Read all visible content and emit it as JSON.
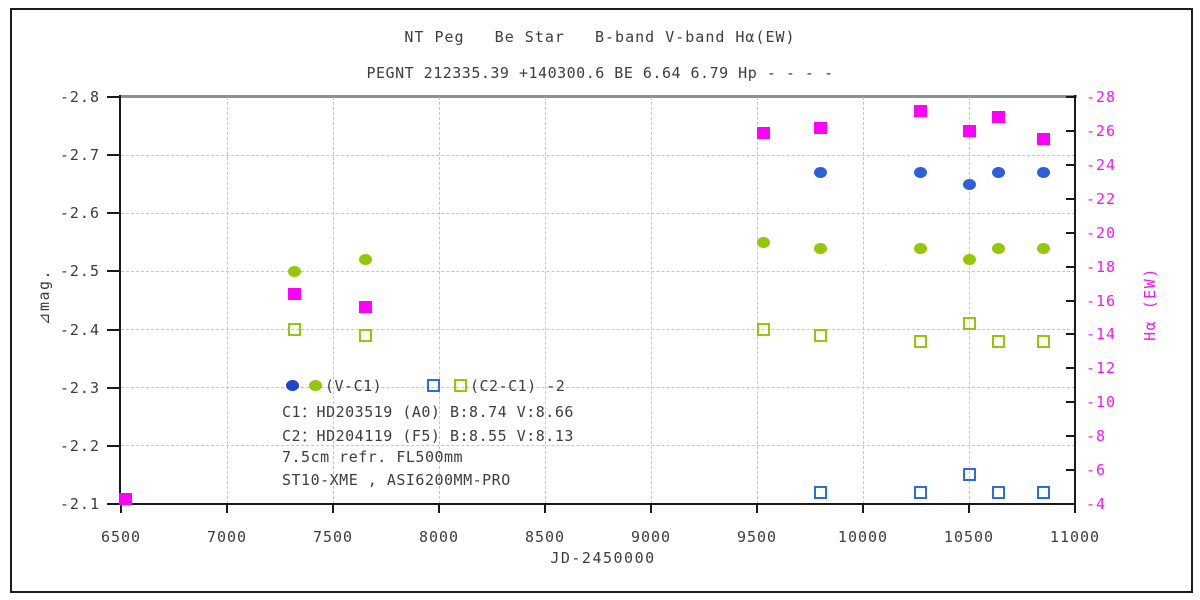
{
  "header": {
    "title": "NT Peg   Be Star   B-band V-band Hα(EW)",
    "subtitle": "PEGNT 212335.39 +140300.6 BE 6.64 6.79 Hp - - - -"
  },
  "legend": {
    "vc1_label": "(V-C1)",
    "c2c1_label": "(C2-C1) -2"
  },
  "annotations": {
    "line1": "C1：HD203519 (A0) B:8.74 V:8.66",
    "line2": "C2：HD204119 (F5) B:8.55 V:8.13",
    "line3": "7.5cm refr. FL500mm",
    "line4": "ST10-XME , ASI6200MM-PRO"
  },
  "colors": {
    "blue_circle": "#2e5fd8",
    "blue_square": "#2f6be0",
    "olive": "#94c60a",
    "magenta": "#ff00ff",
    "magenta_text": "#f318f3",
    "grid": "#c6c6c6",
    "axis": "#1a1a1a",
    "text": "#3d3d3d"
  },
  "chart_data": {
    "type": "scatter",
    "title": "NT Peg  Be Star  B-band V-band Hα(EW)",
    "subtitle": "PEGNT 212335.39 +140300.6 BE 6.64 6.79 Hp - - - -",
    "xlabel": "JD-2450000",
    "ylabel_left": "⊿mag.",
    "ylabel_right": "Hα (EW)",
    "xlim": [
      6500,
      11000
    ],
    "x_ticks": [
      6500,
      7000,
      7500,
      8000,
      8500,
      9000,
      9500,
      10000,
      10500,
      11000
    ],
    "ylim_left": [
      -2.8,
      -2.1
    ],
    "y_left_ticks": [
      -2.8,
      -2.7,
      -2.6,
      -2.5,
      -2.4,
      -2.3,
      -2.2,
      -2.1
    ],
    "ylim_right": [
      -28,
      -4
    ],
    "y_right_ticks": [
      -28,
      -26,
      -24,
      -22,
      -20,
      -18,
      -16,
      -14,
      -12,
      -10,
      -8,
      -6,
      -4
    ],
    "grid": "dashed interior gridlines, both axes",
    "legend_position": "inside lower-left",
    "series": [
      {
        "name": "B-C1 (blue filled circle)",
        "marker": "filled-circle",
        "color_key": "blue_circle",
        "axis": "left",
        "points": [
          [
            9800,
            -2.67
          ],
          [
            10270,
            -2.67
          ],
          [
            10500,
            -2.65
          ],
          [
            10640,
            -2.67
          ],
          [
            10850,
            -2.67
          ]
        ]
      },
      {
        "name": "V-C1 (olive filled circle)",
        "marker": "filled-circle",
        "color_key": "olive",
        "axis": "left",
        "points": [
          [
            7320,
            -2.5
          ],
          [
            7655,
            -2.52
          ],
          [
            9530,
            -2.55
          ],
          [
            9800,
            -2.54
          ],
          [
            10270,
            -2.54
          ],
          [
            10500,
            -2.52
          ],
          [
            10640,
            -2.54
          ],
          [
            10850,
            -2.54
          ]
        ]
      },
      {
        "name": "(C2-C1)-2 B (blue open square)",
        "marker": "open-square",
        "color_key": "blue_square",
        "axis": "left",
        "points": [
          [
            9800,
            -2.12
          ],
          [
            10270,
            -2.12
          ],
          [
            10500,
            -2.15
          ],
          [
            10640,
            -2.12
          ],
          [
            10850,
            -2.12
          ]
        ]
      },
      {
        "name": "(C2-C1)-2 V (olive open square)",
        "marker": "open-square",
        "color_key": "olive",
        "axis": "left",
        "points": [
          [
            7320,
            -2.4
          ],
          [
            7655,
            -2.39
          ],
          [
            9530,
            -2.4
          ],
          [
            9800,
            -2.39
          ],
          [
            10270,
            -2.38
          ],
          [
            10500,
            -2.41
          ],
          [
            10640,
            -2.38
          ],
          [
            10850,
            -2.38
          ]
        ]
      },
      {
        "name": "Hα EW (magenta filled square)",
        "marker": "filled-square",
        "color_key": "magenta",
        "axis": "right",
        "points": [
          [
            6520,
            -4.3
          ],
          [
            7320,
            -16.4
          ],
          [
            7655,
            -15.6
          ],
          [
            9530,
            -25.9
          ],
          [
            9800,
            -26.2
          ],
          [
            10270,
            -27.2
          ],
          [
            10500,
            -26.0
          ],
          [
            10640,
            -26.8
          ],
          [
            10850,
            -25.5
          ]
        ]
      }
    ]
  }
}
